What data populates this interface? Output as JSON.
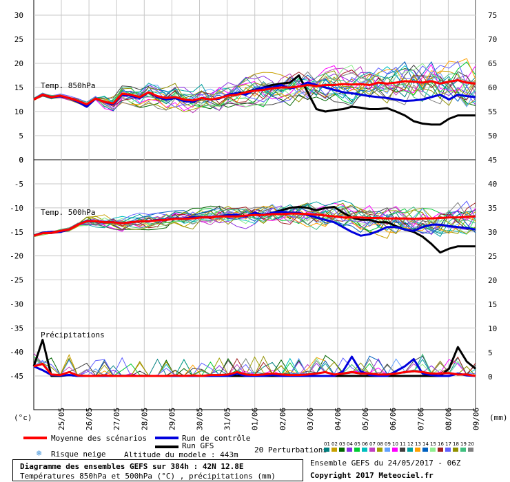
{
  "chart_data": [
    {
      "type": "line",
      "panel_label": "Temp. 850hPa",
      "left_axis_ticks": [
        30,
        25,
        20,
        15,
        10,
        5,
        0
      ],
      "right_axis_ticks": [
        75,
        70,
        65,
        60,
        55,
        50
      ],
      "ylim": [
        0,
        33
      ],
      "x_ticks": [
        "25/05",
        "26/05",
        "27/05",
        "28/05",
        "29/05",
        "30/05",
        "31/05",
        "01/06",
        "02/06",
        "03/06",
        "04/06",
        "05/06",
        "06/06",
        "07/06",
        "08/06",
        "09/06"
      ],
      "series": [
        {
          "name": "Moyenne des scénarios",
          "color": "#ff0000",
          "values": [
            12.5,
            13.5,
            13,
            13.3,
            12.8,
            12.2,
            11.5,
            12.7,
            12,
            11.7,
            13.7,
            13.5,
            13,
            14,
            13.2,
            12.8,
            13,
            12.5,
            12.3,
            12.8,
            12.5,
            12.8,
            13.3,
            13.5,
            14,
            14.3,
            14.5,
            14.8,
            15,
            15,
            15.2,
            15.5,
            15.3,
            15.5,
            15.5,
            15.7,
            15.6,
            15.7,
            15.5,
            16,
            15.8,
            16,
            16.3,
            16.2,
            16,
            16.3,
            15.8,
            16.2,
            16.5,
            16,
            15.8
          ]
        },
        {
          "name": "Run de contrôle",
          "color": "#0000dd",
          "values": [
            12.5,
            13.5,
            13,
            13.2,
            12.8,
            12,
            11,
            12.7,
            12,
            11.5,
            13.5,
            13.3,
            12.8,
            14,
            13,
            12.5,
            12.8,
            12.2,
            12,
            12.8,
            12.5,
            12.7,
            13.5,
            13.8,
            13.5,
            14.5,
            15,
            15,
            15.5,
            14.8,
            15.2,
            16,
            15.5,
            15,
            14.5,
            14,
            13.8,
            13.5,
            13.2,
            13,
            12.8,
            12.5,
            12.2,
            12.3,
            12.5,
            13,
            13.5,
            12.5,
            13.5,
            13.2,
            13
          ]
        },
        {
          "name": "Run GFS",
          "color": "#000000",
          "values": [
            12.5,
            13.5,
            13,
            13.2,
            12.8,
            12,
            11,
            12.7,
            12,
            11.5,
            13.5,
            13.3,
            12.8,
            14,
            13,
            12.5,
            12.8,
            12.2,
            12,
            12.8,
            12.5,
            12.7,
            13.5,
            13.8,
            14,
            14.5,
            15,
            15.5,
            15.8,
            16,
            17.5,
            14,
            10.5,
            10,
            10.3,
            10.5,
            11,
            10.8,
            10.5,
            10.5,
            10.7,
            10,
            9.2,
            8,
            7.5,
            7.3,
            7.3,
            8.5,
            9.2,
            9.2,
            9.2
          ]
        }
      ]
    },
    {
      "type": "line",
      "panel_label": "Temp. 500hPa",
      "left_axis_ticks": [
        -5,
        -10,
        -15,
        -20,
        -25,
        -30,
        -35,
        -40,
        -45
      ],
      "right_axis_ticks": [
        45,
        40,
        35,
        30,
        25,
        20,
        15,
        10,
        5,
        0
      ],
      "ylim": [
        -45,
        0
      ],
      "series": [
        {
          "name": "Moyenne des scénarios",
          "color": "#ff0000",
          "values": [
            -15.8,
            -15.3,
            -15.2,
            -14.8,
            -14.5,
            -13.5,
            -12.8,
            -12.8,
            -13,
            -13,
            -13.2,
            -13,
            -12.8,
            -12.8,
            -12.6,
            -12.5,
            -12.3,
            -12.3,
            -12.2,
            -12,
            -12,
            -11.8,
            -11.8,
            -11.8,
            -11.6,
            -11.5,
            -11.5,
            -11.3,
            -11.3,
            -11.2,
            -11.2,
            -11.3,
            -11.4,
            -11.6,
            -11.8,
            -12,
            -12,
            -12,
            -12.1,
            -12.1,
            -12.2,
            -12.2,
            -12.2,
            -12.3,
            -12.2,
            -12.2,
            -12.1,
            -12,
            -12,
            -11.9,
            -11.8
          ]
        },
        {
          "name": "Run de contrôle",
          "color": "#0000dd",
          "values": [
            -15.8,
            -15.2,
            -15,
            -15,
            -14.5,
            -13.5,
            -12.7,
            -12.8,
            -13,
            -13,
            -13.2,
            -13,
            -12.8,
            -12.8,
            -12.5,
            -12.5,
            -12.2,
            -12.2,
            -12,
            -12,
            -12,
            -11.8,
            -11.5,
            -11.5,
            -11.8,
            -11,
            -11.5,
            -11,
            -10.8,
            -11,
            -11,
            -11.5,
            -12,
            -12.5,
            -13,
            -14,
            -15,
            -15.8,
            -15.5,
            -14.8,
            -14,
            -14,
            -14.5,
            -14.8,
            -14,
            -13.5,
            -13.5,
            -13.8,
            -14,
            -14.2,
            -14.5
          ]
        },
        {
          "name": "Run GFS",
          "color": "#000000",
          "values": [
            -15.8,
            -15.2,
            -15,
            -15,
            -14.5,
            -13.5,
            -12.7,
            -12.8,
            -13,
            -13,
            -13.2,
            -13,
            -12.8,
            -12.8,
            -12.5,
            -12.5,
            -12.2,
            -12.2,
            -12,
            -12,
            -12,
            -11.8,
            -11.5,
            -11.5,
            -11.8,
            -11,
            -11.5,
            -11,
            -10.5,
            -10,
            -9.8,
            -10,
            -10.5,
            -10,
            -9.8,
            -11,
            -12,
            -12.5,
            -12.5,
            -13,
            -13,
            -13.8,
            -14.5,
            -15,
            -16,
            -17.5,
            -19.3,
            -18.5,
            -18,
            -18,
            -18
          ]
        }
      ]
    },
    {
      "type": "line",
      "panel_label": "Précipitations",
      "ylim": [
        0,
        20
      ],
      "series": [
        {
          "name": "Moyenne des scénarios",
          "color": "#ff0000",
          "values": [
            2,
            2.5,
            0.3,
            0.2,
            0.8,
            0.1,
            0,
            0,
            0.1,
            0,
            0,
            0,
            0,
            0,
            0,
            0,
            0.1,
            0,
            0.1,
            0,
            0.2,
            0.2,
            0.3,
            0.8,
            0.3,
            0.2,
            0.3,
            0.5,
            0.3,
            0.2,
            0.2,
            0.3,
            0.5,
            0.8,
            0.3,
            0.5,
            0.8,
            0.5,
            0.5,
            0.3,
            0.3,
            0.5,
            0.8,
            1,
            0.8,
            0.5,
            0.5,
            0.6,
            0.3,
            0.3,
            0
          ]
        },
        {
          "name": "Run de contrôle",
          "color": "#0000dd",
          "values": [
            2,
            1.2,
            0.2,
            0.1,
            0.2,
            0,
            0,
            0,
            0,
            0,
            0,
            0,
            0,
            0,
            0,
            0,
            0,
            0,
            0,
            0,
            0,
            0,
            0,
            0.5,
            0,
            0,
            0,
            0.2,
            0,
            0,
            0,
            0,
            0,
            0,
            0,
            1,
            4,
            1,
            0.2,
            0,
            0,
            1,
            2,
            3.5,
            0.5,
            0.2,
            0,
            0,
            0.5,
            0.1,
            0
          ]
        },
        {
          "name": "Run GFS",
          "color": "#000000",
          "values": [
            2,
            7.5,
            0,
            0,
            0.2,
            0,
            0,
            0,
            0,
            0,
            0,
            0,
            0,
            0,
            0,
            0,
            0,
            0,
            0,
            0,
            0,
            0,
            0,
            0,
            0,
            0,
            0,
            0,
            0,
            0,
            0,
            0,
            0,
            0,
            0,
            0,
            0,
            0,
            0,
            0,
            0,
            0,
            0,
            0,
            0,
            0,
            0,
            1.5,
            6,
            3,
            1.5
          ]
        }
      ]
    }
  ],
  "axes": {
    "left_unit": "(°c)",
    "right_unit": "(mm)",
    "bottom_left_ticks": [
      "0"
    ]
  },
  "legend": {
    "mean_label": "Moyenne des scénarios",
    "control_label": "Run de contrôle",
    "gfs_label": "Run GFS",
    "snow_label": "Risque neige",
    "altitude_label": "Altitude du modele : 443m",
    "perturbations_label": "20 Perturbations",
    "perturbation_numbers": [
      "01",
      "02",
      "03",
      "04",
      "05",
      "06",
      "07",
      "08",
      "09",
      "10",
      "11",
      "12",
      "13",
      "14",
      "15",
      "16",
      "17",
      "18",
      "19",
      "20"
    ],
    "colors": {
      "mean": "#ff0000",
      "control": "#0000dd",
      "gfs": "#000000",
      "snow": "#3a8fd8",
      "perturbations": [
        "#008080",
        "#c8a000",
        "#006600",
        "#8a2be2",
        "#00cc33",
        "#00bfbf",
        "#c040c0",
        "#a0a000",
        "#60a0ff",
        "#ff00ff",
        "#404040",
        "#00a0a0",
        "#ffa000",
        "#0060c0",
        "#90ee90",
        "#a02020",
        "#6060ff",
        "#909000",
        "#40c080",
        "#808080"
      ]
    }
  },
  "footer": {
    "title_line1": "Diagramme des ensembles GEFS sur 384h : 42N 12.8E",
    "title_line2": "Températures 850hPa et 500hPa (°C) , précipitations (mm)",
    "run_info": "Ensemble GEFS du 24/05/2017 - 06Z",
    "copyright": "Copyright 2017 Meteociel.fr"
  }
}
